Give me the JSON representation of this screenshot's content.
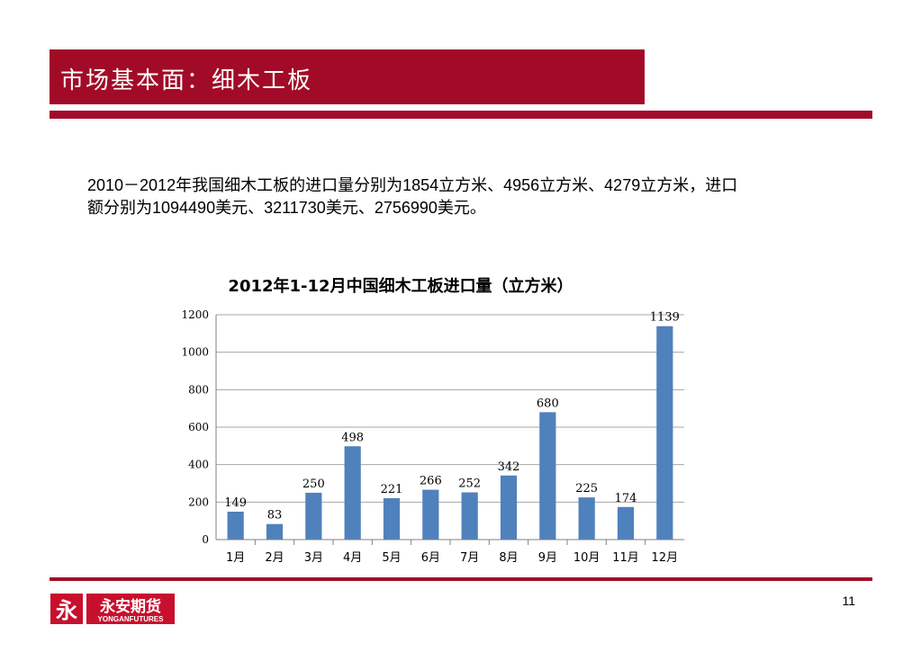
{
  "slide": {
    "title": "市场基本面：细木工板",
    "body": "2010－2012年我国细木工板的进口量分别为1854立方米、4956立方米、4279立方米，进口额分别为1094490美元、3211730美元、2756990美元。",
    "page_number": "11"
  },
  "logo": {
    "mark": "永",
    "name": "永安期货",
    "name_en": "YONGANFUTURES",
    "color": "#c8102e"
  },
  "colors": {
    "accent": "#a20b27",
    "bar": "#4f81bd"
  },
  "chart_data": {
    "type": "bar",
    "title": "2012年1-12月中国细木工板进口量（立方米）",
    "categories": [
      "1月",
      "2月",
      "3月",
      "4月",
      "5月",
      "6月",
      "7月",
      "8月",
      "9月",
      "10月",
      "11月",
      "12月"
    ],
    "values": [
      149,
      83,
      250,
      498,
      221,
      266,
      252,
      342,
      680,
      225,
      174,
      1139
    ],
    "ylim": [
      0,
      1200
    ],
    "yticks": [
      0,
      200,
      400,
      600,
      800,
      1000,
      1200
    ],
    "grid": true,
    "legend": "none"
  }
}
